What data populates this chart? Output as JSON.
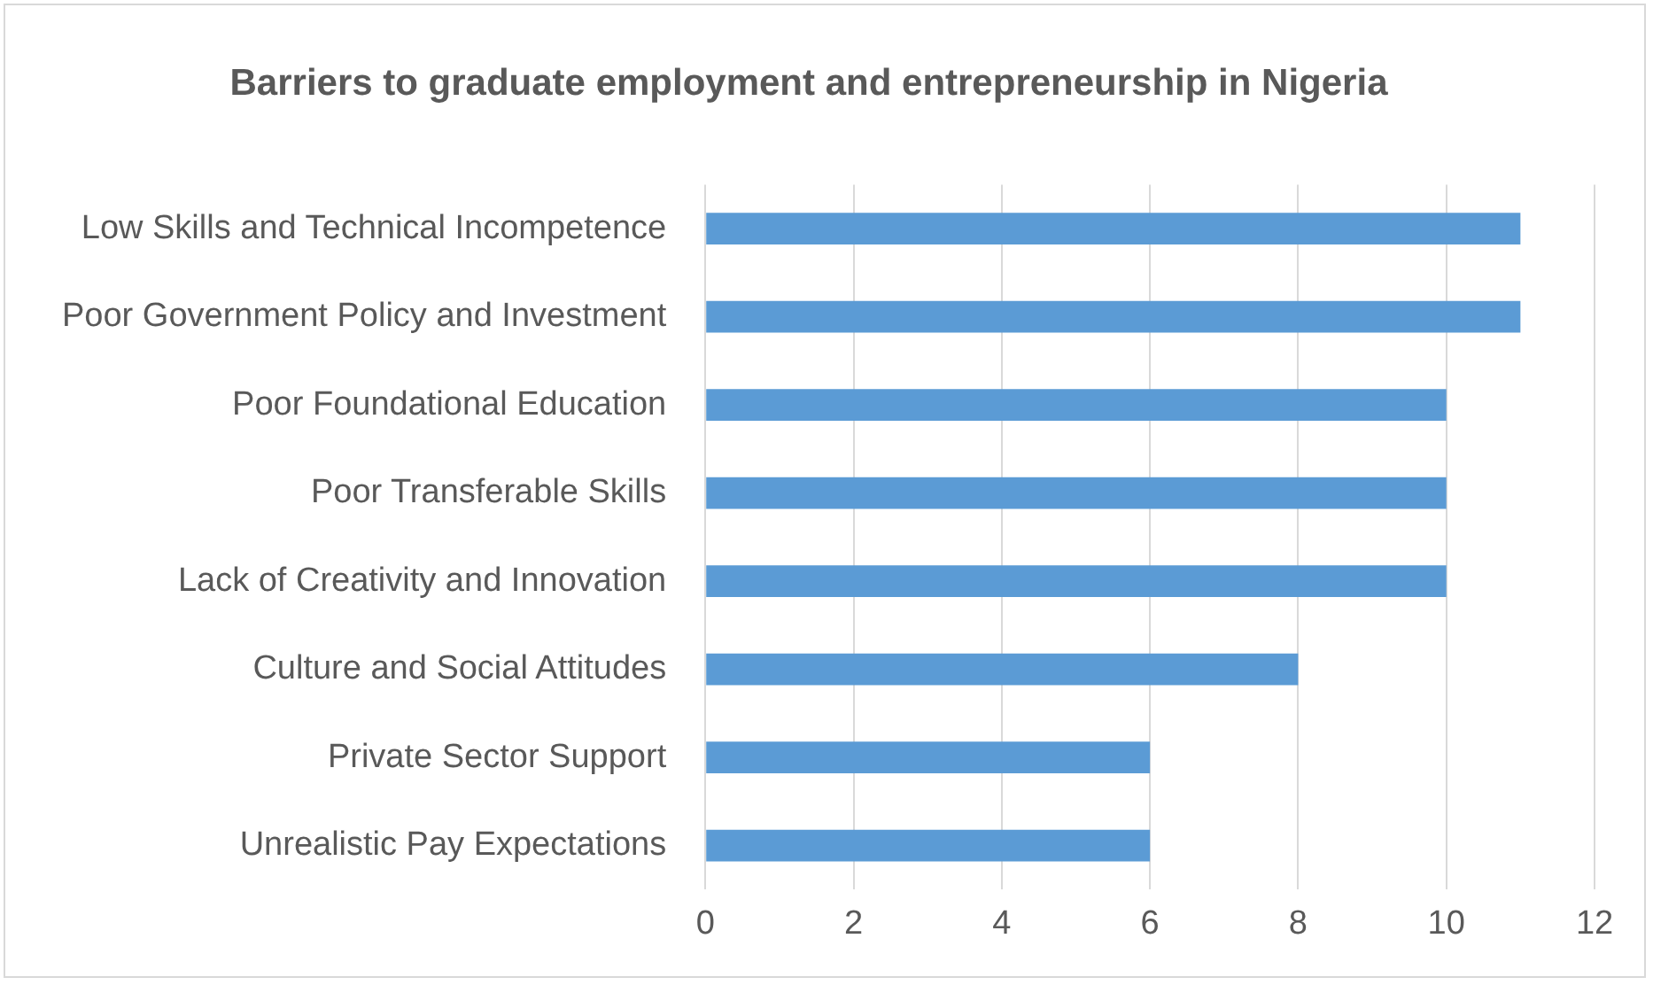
{
  "chart_data": {
    "type": "bar",
    "orientation": "horizontal",
    "title": "Barriers to graduate employment and entrepreneurship in Nigeria",
    "categories": [
      "Low Skills and Technical Incompetence",
      "Poor Government Policy and Investment",
      "Poor Foundational Education",
      "Poor Transferable Skills",
      "Lack of Creativity and Innovation",
      "Culture and Social Attitudes",
      "Private Sector Support",
      "Unrealistic Pay Expectations"
    ],
    "values": [
      11,
      11,
      10,
      10,
      10,
      8,
      6,
      6
    ],
    "color": "#5b9bd5",
    "xlim": [
      0,
      12
    ],
    "xticks": [
      0,
      2,
      4,
      6,
      8,
      10,
      12
    ],
    "grid": "x",
    "legend": false
  }
}
